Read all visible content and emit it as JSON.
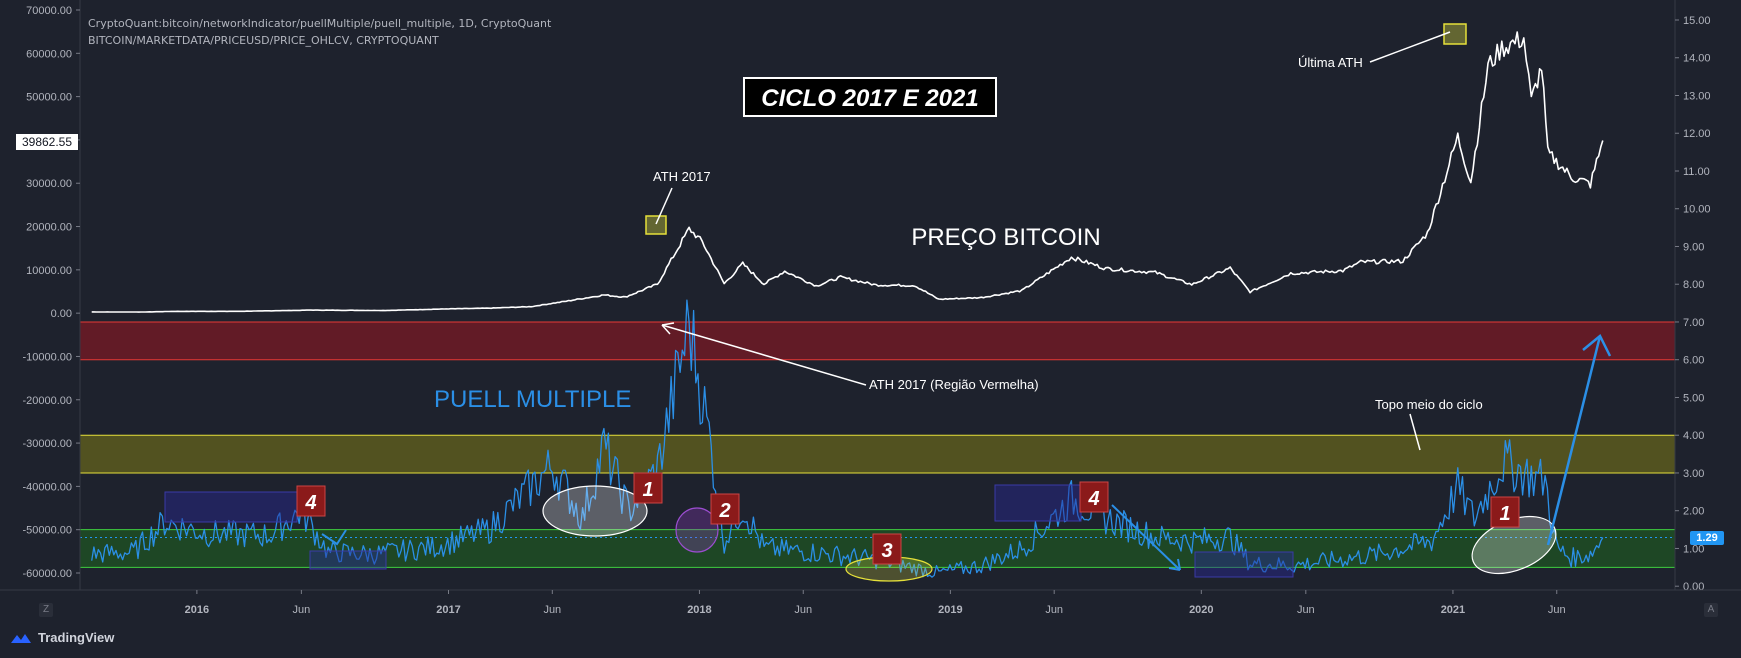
{
  "header": {
    "line1": "CryptoQuant:bitcoin/networkIndicator/puellMultiple/puell_multiple, 1D, CryptoQuant",
    "line2": "BITCOIN/MARKETDATA/PRICEUSD/PRICE_OHLCV, CRYPTOQUANT"
  },
  "brand": {
    "label": "TradingView"
  },
  "toolbar": {
    "z_label": "Z",
    "a_label": "A"
  },
  "current": {
    "left_value": "39862.55",
    "right_value": "1.29"
  },
  "colors": {
    "price": "#ffffff",
    "puell": "#2b8fe6",
    "red_band": "#6e1a26",
    "yellow_band": "#5c5a1e",
    "green_band": "#1e4d25",
    "background": "#1e222d"
  },
  "annotations": {
    "title": "CICLO 2017 E 2021",
    "price_label": "PREÇO BITCOIN",
    "puell_label": "PUELL MULTIPLE",
    "ath2017": "ATH 2017",
    "ultima_ath": "Última ATH",
    "ath2017_red": "ATH 2017 (Região Vermelha)",
    "topo_meio": "Topo meio do ciclo",
    "badges": [
      "4",
      "1",
      "2",
      "3",
      "4",
      "1"
    ]
  },
  "chart_data": {
    "type": "line",
    "x_ticks": [
      "2016",
      "Jun",
      "2017",
      "Jun",
      "2018",
      "Jun",
      "2019",
      "Jun",
      "2020",
      "Jun",
      "2021",
      "Jun"
    ],
    "left_axis": {
      "ticks": [
        "70000.00",
        "60000.00",
        "50000.00",
        "40000.00",
        "30000.00",
        "20000.00",
        "10000.00",
        "0.00",
        "-10000.00",
        "-20000.00",
        "-30000.00",
        "-40000.00",
        "-50000.00",
        "-60000.00"
      ],
      "ylim": [
        -62000,
        70000
      ]
    },
    "right_axis": {
      "ticks": [
        "15.00",
        "14.00",
        "13.00",
        "12.00",
        "11.00",
        "10.00",
        "9.00",
        "8.00",
        "7.00",
        "6.00",
        "5.00",
        "4.00",
        "3.00",
        "2.00",
        "1.00",
        "0.00"
      ],
      "ylim": [
        -0.2,
        15.2
      ]
    },
    "bands": [
      {
        "name": "red",
        "from": 6.0,
        "to": 7.0
      },
      {
        "name": "yellow",
        "from": 3.0,
        "to": 4.0
      },
      {
        "name": "green",
        "from": 0.5,
        "to": 1.5
      }
    ],
    "series": [
      {
        "name": "Bitcoin Price",
        "axis": "left",
        "points": [
          [
            "2015-08-01",
            280
          ],
          [
            "2015-10-15",
            260
          ],
          [
            "2015-12-01",
            420
          ],
          [
            "2016-03-01",
            420
          ],
          [
            "2016-06-15",
            700
          ],
          [
            "2016-10-01",
            620
          ],
          [
            "2017-01-01",
            990
          ],
          [
            "2017-03-01",
            1150
          ],
          [
            "2017-05-01",
            1500
          ],
          [
            "2017-06-15",
            2600
          ],
          [
            "2017-08-15",
            4200
          ],
          [
            "2017-09-15",
            3700
          ],
          [
            "2017-11-01",
            6700
          ],
          [
            "2017-12-17",
            19500
          ],
          [
            "2018-01-05",
            16500
          ],
          [
            "2018-02-06",
            6800
          ],
          [
            "2018-03-05",
            11400
          ],
          [
            "2018-04-05",
            6700
          ],
          [
            "2018-05-05",
            9700
          ],
          [
            "2018-06-20",
            6300
          ],
          [
            "2018-07-25",
            8300
          ],
          [
            "2018-09-15",
            6500
          ],
          [
            "2018-11-10",
            6400
          ],
          [
            "2018-12-15",
            3200
          ],
          [
            "2019-02-15",
            3600
          ],
          [
            "2019-04-15",
            5200
          ],
          [
            "2019-06-26",
            12900
          ],
          [
            "2019-08-15",
            10300
          ],
          [
            "2019-10-26",
            9400
          ],
          [
            "2019-12-18",
            6600
          ],
          [
            "2020-02-12",
            10400
          ],
          [
            "2020-03-12",
            4900
          ],
          [
            "2020-05-10",
            9200
          ],
          [
            "2020-07-25",
            9800
          ],
          [
            "2020-08-20",
            11800
          ],
          [
            "2020-10-20",
            12000
          ],
          [
            "2020-11-25",
            18500
          ],
          [
            "2021-01-08",
            40700
          ],
          [
            "2021-01-27",
            30400
          ],
          [
            "2021-02-21",
            57000
          ],
          [
            "2021-03-13",
            61200
          ],
          [
            "2021-04-14",
            63500
          ],
          [
            "2021-04-25",
            49000
          ],
          [
            "2021-05-10",
            57000
          ],
          [
            "2021-05-19",
            37000
          ],
          [
            "2021-06-22",
            31500
          ],
          [
            "2021-07-20",
            29800
          ],
          [
            "2021-08-07",
            39862
          ]
        ]
      },
      {
        "name": "Puell Multiple",
        "axis": "right",
        "points": [
          [
            "2015-08-01",
            0.85
          ],
          [
            "2015-10-01",
            0.9
          ],
          [
            "2015-11-15",
            1.7
          ],
          [
            "2016-01-15",
            1.4
          ],
          [
            "2016-04-15",
            1.35
          ],
          [
            "2016-06-01",
            2.0
          ],
          [
            "2016-07-10",
            0.9
          ],
          [
            "2016-09-15",
            0.85
          ],
          [
            "2016-12-15",
            1.05
          ],
          [
            "2017-03-01",
            1.5
          ],
          [
            "2017-06-01",
            3.2
          ],
          [
            "2017-07-15",
            1.8
          ],
          [
            "2017-08-15",
            3.7
          ],
          [
            "2017-09-20",
            2.0
          ],
          [
            "2017-11-01",
            3.1
          ],
          [
            "2017-12-17",
            7.0
          ],
          [
            "2018-01-15",
            4.0
          ],
          [
            "2018-02-06",
            1.2
          ],
          [
            "2018-03-05",
            2.1
          ],
          [
            "2018-04-05",
            1.0
          ],
          [
            "2018-06-15",
            0.9
          ],
          [
            "2018-09-15",
            0.7
          ],
          [
            "2018-12-15",
            0.35
          ],
          [
            "2019-02-15",
            0.55
          ],
          [
            "2019-04-15",
            1.0
          ],
          [
            "2019-06-26",
            2.3
          ],
          [
            "2019-08-15",
            1.8
          ],
          [
            "2019-10-26",
            1.3
          ],
          [
            "2019-12-18",
            1.2
          ],
          [
            "2020-02-12",
            1.3
          ],
          [
            "2020-03-12",
            0.6
          ],
          [
            "2020-05-15",
            0.55
          ],
          [
            "2020-07-15",
            0.7
          ],
          [
            "2020-09-15",
            0.85
          ],
          [
            "2020-12-01",
            1.2
          ],
          [
            "2021-01-08",
            2.6
          ],
          [
            "2021-02-01",
            1.8
          ],
          [
            "2021-03-15",
            3.3
          ],
          [
            "2021-04-25",
            2.9
          ],
          [
            "2021-05-15",
            2.8
          ],
          [
            "2021-06-01",
            1.0
          ],
          [
            "2021-06-22",
            0.75
          ],
          [
            "2021-07-20",
            0.85
          ],
          [
            "2021-08-07",
            1.29
          ]
        ]
      }
    ],
    "grid": false,
    "legend": "none"
  }
}
